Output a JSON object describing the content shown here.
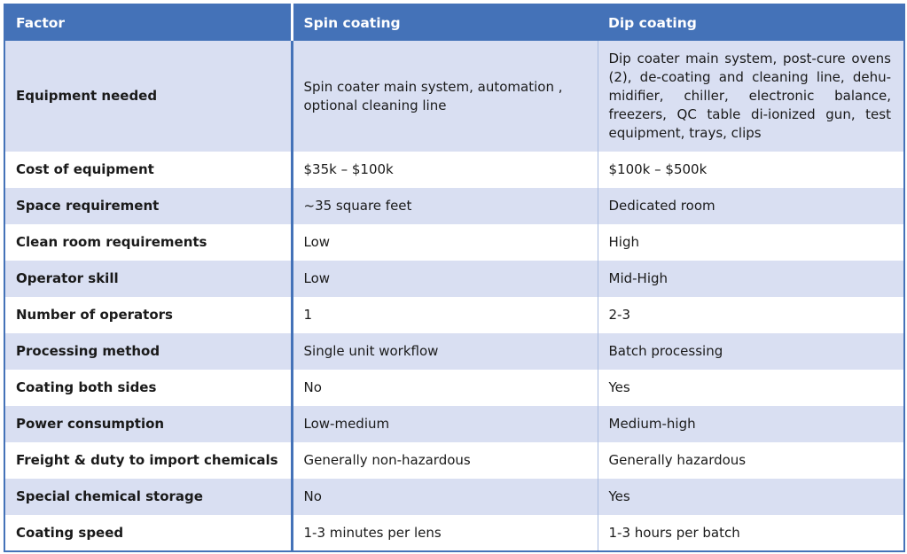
{
  "headers": {
    "factor": "Factor",
    "spin": "Spin coating",
    "dip": "Dip coating"
  },
  "rows": [
    {
      "factor": "Equipment needed",
      "spin": "Spin coater main system, automation , optional cleaning line",
      "dip": "Dip coater main system, post-cure ovens (2), de-coating and cleaning line, dehu-midifier, chiller, electronic balance, freezers, QC table di-ionized gun, test equipment, trays, clips"
    },
    {
      "factor": "Cost of equipment",
      "spin": "$35k – $100k",
      "dip": "$100k – $500k"
    },
    {
      "factor": "Space requirement",
      "spin": "~35 square feet",
      "dip": "Dedicated room"
    },
    {
      "factor": "Clean room requirements",
      "spin": "Low",
      "dip": "High"
    },
    {
      "factor": "Operator skill",
      "spin": "Low",
      "dip": "Mid-High"
    },
    {
      "factor": "Number of operators",
      "spin": "1",
      "dip": "2-3"
    },
    {
      "factor": "Processing method",
      "spin": "Single unit workflow",
      "dip": "Batch processing"
    },
    {
      "factor": "Coating both sides",
      "spin": "No",
      "dip": "Yes"
    },
    {
      "factor": "Power consumption",
      "spin": "Low-medium",
      "dip": "Medium-high"
    },
    {
      "factor": "Freight & duty to import chemicals",
      "spin": "Generally non-hazardous",
      "dip": "Generally hazardous"
    },
    {
      "factor": "Special chemical storage",
      "spin": "No",
      "dip": "Yes"
    },
    {
      "factor": "Coating speed",
      "spin": "1-3 minutes per lens",
      "dip": "1-3 hours per batch"
    }
  ],
  "colors": {
    "header": "#4472b8",
    "band": "#d9dff2"
  }
}
